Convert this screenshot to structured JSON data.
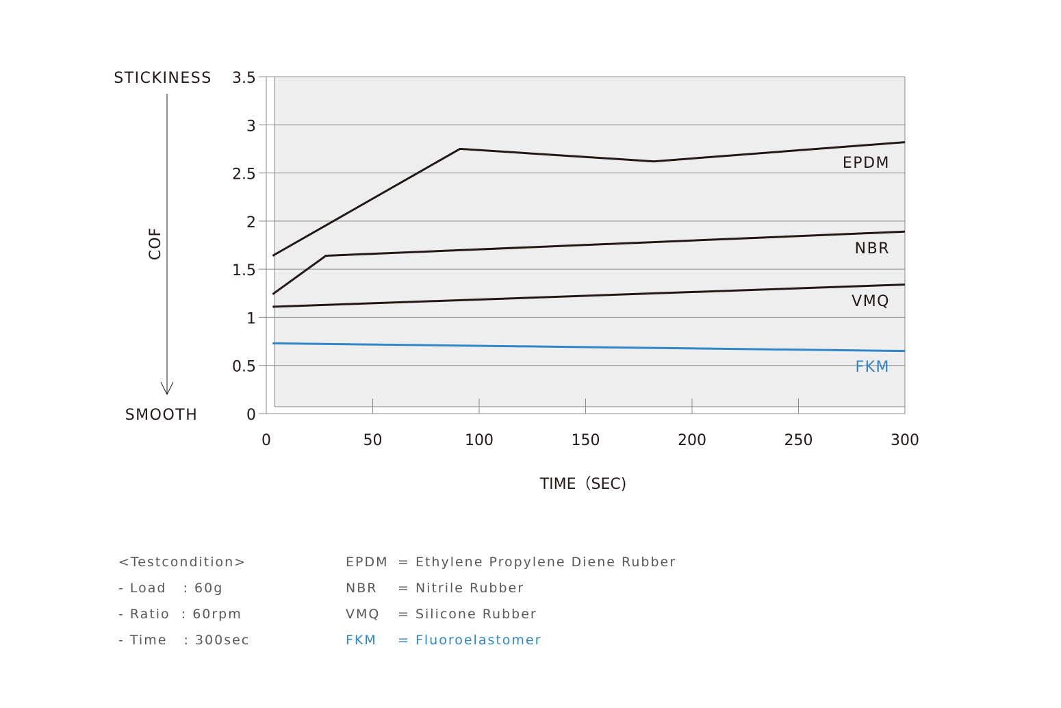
{
  "chart_data": {
    "type": "line",
    "xlabel": "TIME（SEC)",
    "ylabel": "COF",
    "y_top_label": "STICKINESS",
    "y_bottom_label": "SMOOTH",
    "xlim": [
      0,
      300
    ],
    "ylim": [
      0,
      3.5
    ],
    "x_ticks": [
      0,
      50,
      100,
      150,
      200,
      250,
      300
    ],
    "x_tick_labels": [
      "0",
      "50",
      "100",
      "150",
      "200",
      "250",
      "300"
    ],
    "y_ticks": [
      0,
      0.5,
      1,
      1.5,
      2,
      2.5,
      3,
      3.5
    ],
    "y_tick_labels": [
      "0",
      "0.5",
      "1",
      "1.5",
      "2",
      "2.5",
      "3",
      "3.5"
    ],
    "grid": "horizontal",
    "plot_background": "#eeeeee",
    "series": [
      {
        "name": "EPDM",
        "color": "#231815",
        "x": [
          3,
          91,
          182,
          300
        ],
        "y": [
          1.64,
          2.75,
          2.62,
          2.82
        ]
      },
      {
        "name": "NBR",
        "color": "#231815",
        "x": [
          3,
          28,
          300
        ],
        "y": [
          1.24,
          1.64,
          1.89
        ]
      },
      {
        "name": "VMQ",
        "color": "#231815",
        "x": [
          3,
          300
        ],
        "y": [
          1.11,
          1.34
        ]
      },
      {
        "name": "FKM",
        "color": "#2f86c8",
        "x": [
          3,
          300
        ],
        "y": [
          0.73,
          0.65
        ]
      }
    ]
  },
  "test_conditions": {
    "heading": "<Testcondition>",
    "items": [
      "- Load   : 60g",
      "- Ratio  : 60rpm",
      "- Time   : 300sec"
    ]
  },
  "definitions": [
    {
      "abbr": "EPDM",
      "meaning": "= Ethylene Propylene Diene Rubber"
    },
    {
      "abbr": "NBR",
      "meaning": "= Nitrile Rubber"
    },
    {
      "abbr": "VMQ",
      "meaning": "= Silicone Rubber"
    },
    {
      "abbr": "FKM",
      "meaning": "= Fluoroelastomer"
    }
  ]
}
